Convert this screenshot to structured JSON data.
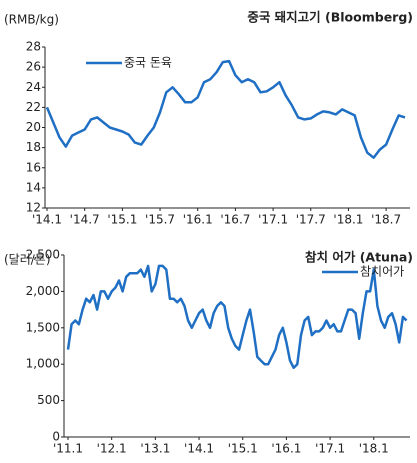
{
  "chart_data": [
    {
      "type": "line",
      "title": "중국 돼지고기 (Bloomberg)",
      "y_label": "(RMB/kg)",
      "categories": [
        "'14.1",
        null,
        null,
        null,
        null,
        null,
        "'14.7",
        null,
        null,
        null,
        null,
        null,
        "'15.1",
        null,
        null,
        null,
        null,
        null,
        "'15.7",
        null,
        null,
        null,
        null,
        null,
        "'16.1",
        null,
        null,
        null,
        null,
        null,
        "'16.7",
        null,
        null,
        null,
        null,
        null,
        "'17.1",
        null,
        null,
        null,
        null,
        null,
        "'17.7",
        null,
        null,
        null,
        null,
        null,
        "'18.1",
        null,
        null,
        null,
        null,
        null,
        "'18.7",
        null,
        null,
        null
      ],
      "series": [
        {
          "name": "중국 돈육",
          "color": "#1f6fc4",
          "values": [
            22,
            20.5,
            19,
            18.1,
            19.2,
            19.5,
            19.8,
            20.8,
            21,
            20.5,
            20,
            19.8,
            19.6,
            19.3,
            18.5,
            18.3,
            19.2,
            20,
            21.5,
            23.5,
            24,
            23.3,
            22.5,
            22.5,
            23,
            24.5,
            24.8,
            25.5,
            26.5,
            26.6,
            25.2,
            24.5,
            24.8,
            24.5,
            23.5,
            23.6,
            24,
            24.5,
            23.2,
            22.2,
            21,
            20.8,
            20.9,
            21.3,
            21.6,
            21.5,
            21.3,
            21.8,
            21.5,
            21.2,
            19,
            17.5,
            17,
            17.8,
            18.3,
            19.8,
            21.2,
            21
          ]
        }
      ],
      "ylim": [
        12,
        28
      ],
      "yticks": [
        12,
        14,
        16,
        18,
        20,
        22,
        24,
        26,
        28
      ],
      "legend": "upper left"
    },
    {
      "type": "line",
      "title": "참치 어가 (Atuna)",
      "y_label": "(달러/톤)",
      "categories": [
        "'11.1",
        null,
        null,
        null,
        null,
        null,
        null,
        null,
        null,
        null,
        null,
        null,
        "'12.1",
        null,
        null,
        null,
        null,
        null,
        null,
        null,
        null,
        null,
        null,
        null,
        "'13.1",
        null,
        null,
        null,
        null,
        null,
        null,
        null,
        null,
        null,
        null,
        null,
        "'14.1",
        null,
        null,
        null,
        null,
        null,
        null,
        null,
        null,
        null,
        null,
        null,
        "'15.1",
        null,
        null,
        null,
        null,
        null,
        null,
        null,
        null,
        null,
        null,
        null,
        "'16.1",
        null,
        null,
        null,
        null,
        null,
        null,
        null,
        null,
        null,
        null,
        null,
        "'17.1",
        null,
        null,
        null,
        null,
        null,
        null,
        null,
        null,
        null,
        null,
        null,
        "'18.1",
        null,
        null,
        null,
        null,
        null,
        null,
        null,
        null,
        null
      ],
      "series": [
        {
          "name": "참치어가",
          "color": "#1f6fc4",
          "values": [
            1200,
            1550,
            1600,
            1550,
            1750,
            1900,
            1850,
            1950,
            1750,
            2000,
            2000,
            1900,
            2000,
            2050,
            2150,
            2000,
            2200,
            2250,
            2250,
            2250,
            2300,
            2200,
            2350,
            2000,
            2100,
            2350,
            2350,
            2300,
            1900,
            1900,
            1850,
            1900,
            1800,
            1600,
            1500,
            1600,
            1700,
            1750,
            1600,
            1500,
            1700,
            1800,
            1850,
            1800,
            1500,
            1350,
            1250,
            1200,
            1400,
            1600,
            1750,
            1450,
            1100,
            1050,
            1000,
            1000,
            1100,
            1200,
            1400,
            1500,
            1300,
            1050,
            950,
            1000,
            1400,
            1600,
            1650,
            1400,
            1450,
            1450,
            1500,
            1600,
            1500,
            1550,
            1450,
            1450,
            1600,
            1750,
            1750,
            1700,
            1350,
            1700,
            2000,
            2000,
            2300,
            1800,
            1600,
            1500,
            1650,
            1700,
            1550,
            1300,
            1650,
            1600
          ]
        }
      ],
      "ylim": [
        0,
        2500
      ],
      "yticks": [
        {
          "value": 0,
          "label": "0"
        },
        {
          "value": 500,
          "label": "500"
        },
        {
          "value": 1000,
          "label": "1,000"
        },
        {
          "value": 1500,
          "label": "1,500"
        },
        {
          "value": 2000,
          "label": "2,000"
        },
        {
          "value": 2500,
          "label": "2,500"
        }
      ],
      "legend": "upper right"
    }
  ]
}
